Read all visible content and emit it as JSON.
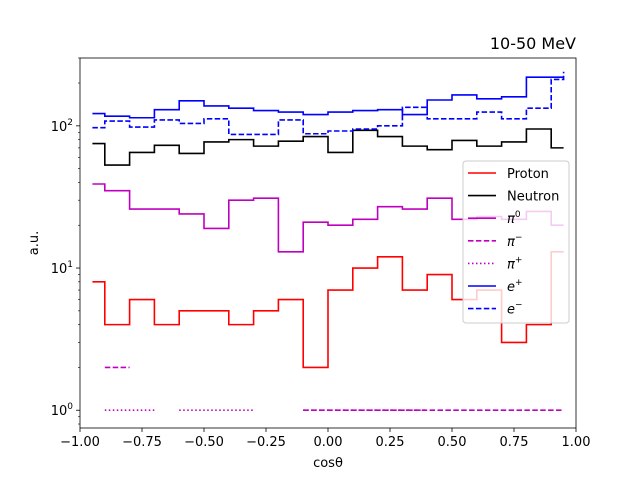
{
  "chart_data": {
    "type": "line",
    "drawstyle": "steps-post",
    "title": "10-50 MeV",
    "xlabel": "cosθ",
    "ylabel": "a.u.",
    "xlim": [
      -1.0,
      1.0
    ],
    "ylim": [
      0.75,
      300
    ],
    "yscale": "log",
    "grid": false,
    "legend_position": "center-right",
    "xticks": [
      {
        "value": -1.0,
        "label": "−1.00"
      },
      {
        "value": -0.75,
        "label": "−0.75"
      },
      {
        "value": -0.5,
        "label": "−0.50"
      },
      {
        "value": -0.25,
        "label": "−0.25"
      },
      {
        "value": 0.0,
        "label": "0.00"
      },
      {
        "value": 0.25,
        "label": "0.25"
      },
      {
        "value": 0.5,
        "label": "0.50"
      },
      {
        "value": 0.75,
        "label": "0.75"
      },
      {
        "value": 1.0,
        "label": "1.00"
      }
    ],
    "yticks": [
      {
        "value": 1,
        "base": "10",
        "exp": "0"
      },
      {
        "value": 10,
        "base": "10",
        "exp": "1"
      },
      {
        "value": 100,
        "base": "10",
        "exp": "2"
      }
    ],
    "x": [
      -0.95,
      -0.9,
      -0.8,
      -0.7,
      -0.6,
      -0.5,
      -0.4,
      -0.3,
      -0.2,
      -0.1,
      0.0,
      0.1,
      0.2,
      0.3,
      0.4,
      0.5,
      0.6,
      0.7,
      0.8,
      0.9,
      0.95
    ],
    "series": [
      {
        "name": "Proton",
        "legend_tex": {
          "base": "Proton",
          "sup": ""
        },
        "color": "#ff0000",
        "dash": "solid",
        "values": [
          8,
          4,
          6,
          4,
          5,
          5,
          4,
          5,
          6,
          2,
          7,
          10,
          12,
          7,
          9,
          6,
          7,
          3,
          4,
          13,
          13
        ]
      },
      {
        "name": "Neutron",
        "legend_tex": {
          "base": "Neutron",
          "sup": ""
        },
        "color": "#000000",
        "dash": "solid",
        "values": [
          75,
          53,
          65,
          73,
          64,
          77,
          80,
          72,
          78,
          84,
          65,
          93,
          84,
          72,
          68,
          79,
          72,
          77,
          95,
          70,
          70
        ]
      },
      {
        "name": "π0",
        "legend_tex": {
          "base": "π",
          "sup": "0"
        },
        "color": "#bf00bf",
        "dash": "solid",
        "values": [
          39,
          35,
          26,
          26,
          24,
          19,
          30,
          31,
          13,
          21,
          20,
          22,
          27,
          26,
          31,
          22,
          23,
          22,
          25,
          20,
          20
        ]
      },
      {
        "name": "π−",
        "legend_tex": {
          "base": "π",
          "sup": "−"
        },
        "color": "#bf00bf",
        "dash": "dashed",
        "values": [
          null,
          2,
          null,
          null,
          null,
          null,
          null,
          null,
          null,
          1,
          1,
          1,
          1,
          1,
          1,
          1,
          1,
          1,
          1,
          1,
          1
        ]
      },
      {
        "name": "π+",
        "legend_tex": {
          "base": "π",
          "sup": "+"
        },
        "color": "#bf00bf",
        "dash": "dotted",
        "values": [
          null,
          1,
          1,
          null,
          1,
          1,
          1,
          null,
          null,
          1,
          1,
          1,
          1,
          1,
          null,
          null,
          null,
          null,
          null,
          null,
          null
        ]
      },
      {
        "name": "e+",
        "legend_tex": {
          "base": "e",
          "sup": "+"
        },
        "color": "#0000ff",
        "dash": "solid",
        "values": [
          122,
          117,
          114,
          130,
          150,
          138,
          133,
          128,
          125,
          120,
          125,
          128,
          130,
          120,
          152,
          165,
          155,
          160,
          220,
          220,
          220
        ]
      },
      {
        "name": "e−",
        "legend_tex": {
          "base": "e",
          "sup": "−"
        },
        "color": "#0000ff",
        "dash": "dashed",
        "values": [
          97,
          108,
          98,
          110,
          104,
          112,
          87,
          87,
          110,
          88,
          92,
          95,
          100,
          135,
          112,
          112,
          125,
          112,
          133,
          212,
          240
        ]
      }
    ]
  }
}
